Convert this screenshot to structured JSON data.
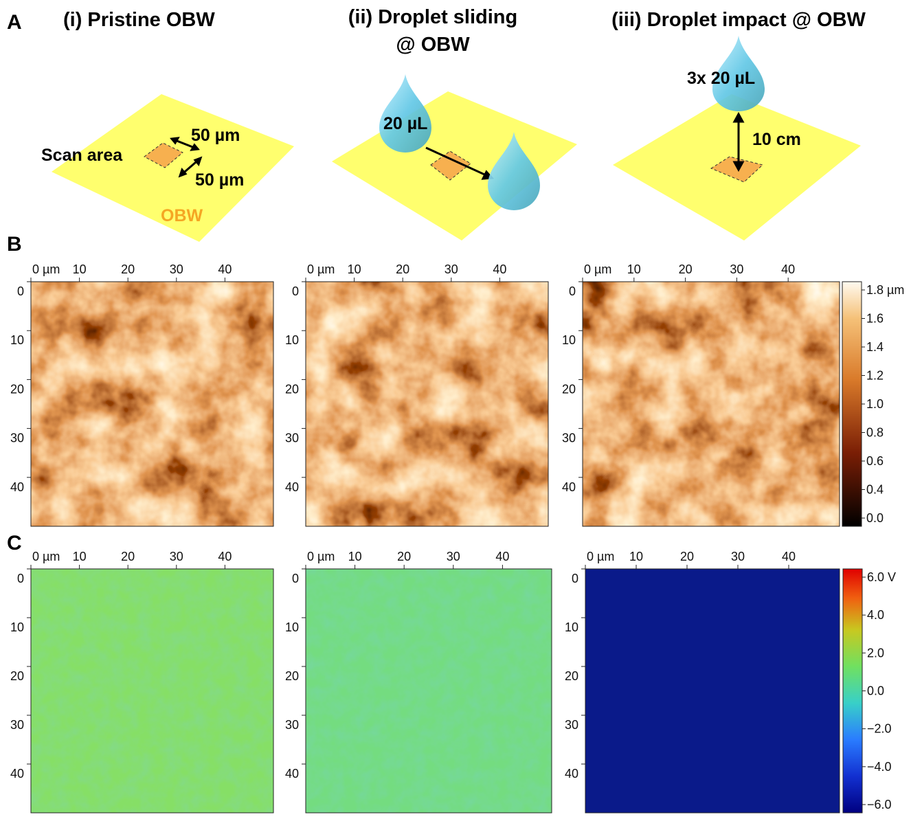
{
  "panel_a": {
    "label": "A",
    "pristine": {
      "title": "(i) Pristine OBW",
      "scan_area": "Scan area",
      "width": "50 µm",
      "length": "50 µm",
      "substrate": "OBW"
    },
    "sliding": {
      "title_line1": "(ii) Droplet sliding",
      "title_line2": "@ OBW",
      "volume": "20 µL"
    },
    "impact": {
      "title": "(iii) Droplet impact @ OBW",
      "volume": "3x 20 µL",
      "height": "10 cm"
    }
  },
  "panel_b": {
    "label": "B",
    "maps": [
      {
        "x_ticks": [
          "0 µm",
          "10",
          "20",
          "30",
          "40"
        ],
        "y_ticks": [
          "0",
          "10",
          "20",
          "30",
          "40"
        ]
      },
      {
        "x_ticks": [
          "0 µm",
          "10",
          "20",
          "30",
          "40"
        ],
        "y_ticks": [
          "0",
          "10",
          "20",
          "30",
          "40"
        ]
      },
      {
        "x_ticks": [
          "0 µm",
          "10",
          "20",
          "30",
          "40"
        ],
        "y_ticks": [
          "0",
          "10",
          "20",
          "30",
          "40"
        ]
      }
    ],
    "colorbar_ticks": [
      "1.8 µm",
      "1.6",
      "1.4",
      "1.2",
      "1.0",
      "0.8",
      "0.6",
      "0.4",
      "0.0"
    ]
  },
  "panel_c": {
    "label": "C",
    "maps": [
      {
        "x_ticks": [
          "0 µm",
          "10",
          "20",
          "30",
          "40"
        ],
        "y_ticks": [
          "0",
          "10",
          "20",
          "30",
          "40"
        ]
      },
      {
        "x_ticks": [
          "0 µm",
          "10",
          "20",
          "30",
          "40"
        ],
        "y_ticks": [
          "0",
          "10",
          "20",
          "30",
          "40"
        ]
      },
      {
        "x_ticks": [
          "0 µm",
          "10",
          "20",
          "30",
          "40"
        ],
        "y_ticks": [
          "0",
          "10",
          "20",
          "30",
          "40"
        ]
      }
    ],
    "colorbar_ticks": [
      "6.0 V",
      "4.0",
      "2.0",
      "0.0",
      "−2.0",
      "−4.0",
      "−6.0"
    ]
  }
}
